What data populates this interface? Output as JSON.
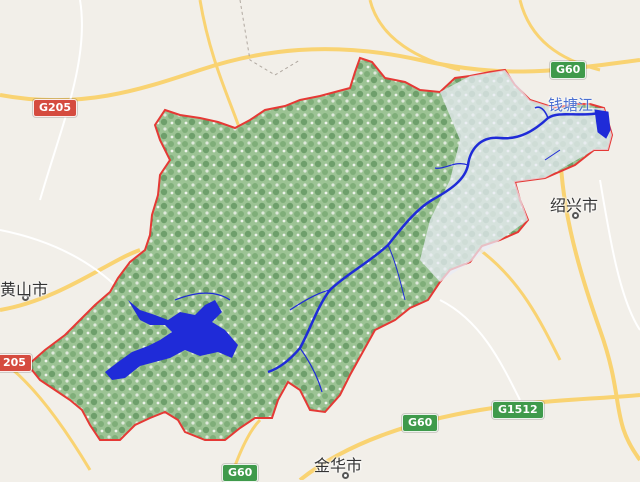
{
  "map": {
    "colors": {
      "background": "#f2efe9",
      "road_yellow": "#f9d372",
      "road_minor": "#ffffff",
      "region_green": "#8fb98a",
      "water_blue": "#1f2bd8",
      "boundary_red": "#e53935",
      "shield_red": "#d54b3f",
      "shield_green": "#3f9a4b"
    },
    "shields": [
      {
        "label": "G60",
        "color": "green"
      },
      {
        "label": "G205",
        "color": "red"
      },
      {
        "label": "205",
        "color": "red"
      },
      {
        "label": "G60",
        "color": "green"
      },
      {
        "label": "G1512",
        "color": "green"
      },
      {
        "label": "G60",
        "color": "green"
      }
    ],
    "cities": [
      {
        "label": "绍兴市"
      },
      {
        "label": "黄山市"
      },
      {
        "label": "金华市"
      }
    ],
    "water_labels": [
      {
        "label": "钱塘江"
      }
    ]
  }
}
